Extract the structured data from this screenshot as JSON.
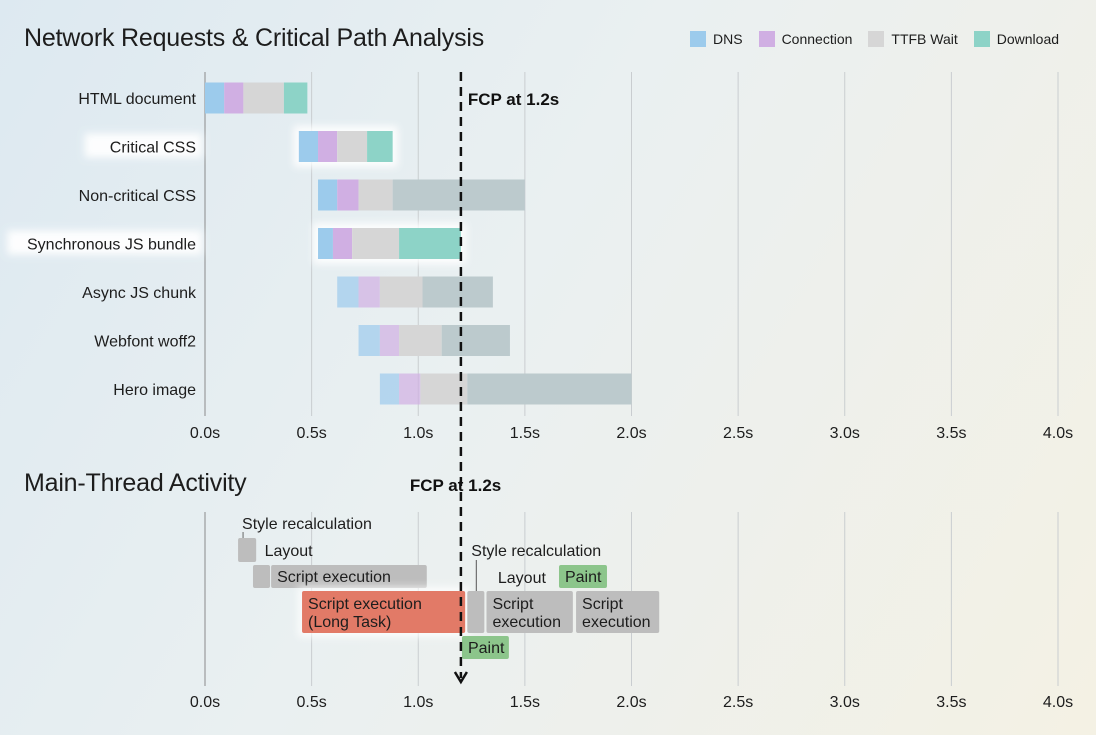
{
  "chart_data": [
    {
      "type": "bar",
      "subtype": "waterfall",
      "title": "Network Requests & Critical Path Analysis",
      "xlim": [
        0,
        4
      ],
      "x_ticks": [
        "0.0s",
        "0.5s",
        "1.0s",
        "1.5s",
        "2.0s",
        "2.5s",
        "3.0s",
        "3.5s",
        "4.0s"
      ],
      "grid": true,
      "legend_position": "top-right",
      "legend": [
        {
          "name": "DNS",
          "color": "#9ccbec"
        },
        {
          "name": "Connection",
          "color": "#d0afe3"
        },
        {
          "name": "TTFB Wait",
          "color": "#d6d6d6"
        },
        {
          "name": "Download",
          "color": "#8dd3c7"
        }
      ],
      "non_critical_download_color": "#bccacd",
      "annotation": {
        "label": "FCP at 1.2s",
        "x": 1.2
      },
      "rows": [
        {
          "label": "HTML document",
          "highlight": false,
          "critical": true,
          "dns": [
            0,
            0.09
          ],
          "connection": [
            0.09,
            0.18
          ],
          "ttfb": [
            0.18,
            0.37
          ],
          "download": [
            0.37,
            0.48
          ]
        },
        {
          "label": "Critical CSS",
          "highlight": true,
          "critical": true,
          "dns": [
            0.44,
            0.53
          ],
          "connection": [
            0.53,
            0.62
          ],
          "ttfb": [
            0.62,
            0.76
          ],
          "download": [
            0.76,
            0.88
          ]
        },
        {
          "label": "Non-critical CSS",
          "highlight": false,
          "critical": false,
          "dns": [
            0.53,
            0.62
          ],
          "connection": [
            0.62,
            0.72
          ],
          "ttfb": [
            0.72,
            0.88
          ],
          "download": [
            0.88,
            1.5
          ]
        },
        {
          "label": "Synchronous JS bundle",
          "highlight": true,
          "critical": true,
          "dns": [
            0.53,
            0.6
          ],
          "connection": [
            0.6,
            0.69
          ],
          "ttfb": [
            0.69,
            0.91
          ],
          "download": [
            0.91,
            1.2
          ]
        },
        {
          "label": "Async JS chunk",
          "highlight": false,
          "critical": false,
          "dns": [
            0.62,
            0.72
          ],
          "connection": [
            0.72,
            0.82
          ],
          "ttfb": [
            0.82,
            1.02
          ],
          "download": [
            1.02,
            1.35
          ]
        },
        {
          "label": "Webfont woff2",
          "highlight": false,
          "critical": false,
          "dns": [
            0.72,
            0.82
          ],
          "connection": [
            0.82,
            0.91
          ],
          "ttfb": [
            0.91,
            1.11
          ],
          "download": [
            1.11,
            1.43
          ]
        },
        {
          "label": "Hero image",
          "highlight": false,
          "critical": false,
          "dns": [
            0.82,
            0.91
          ],
          "connection": [
            0.91,
            1.01
          ],
          "ttfb": [
            1.01,
            1.23
          ],
          "download": [
            1.23,
            2.0
          ]
        }
      ]
    },
    {
      "type": "bar",
      "subtype": "timeline",
      "title": "Main-Thread Activity",
      "xlim": [
        0,
        4
      ],
      "x_ticks": [
        "0.0s",
        "0.5s",
        "1.0s",
        "1.5s",
        "2.0s",
        "2.5s",
        "3.0s",
        "3.5s",
        "4.0s"
      ],
      "grid": true,
      "annotation": {
        "label": "FCP at 1.2s",
        "x": 1.2
      },
      "colors": {
        "task": "#bdbdbd",
        "long_task": "#e27a67",
        "paint": "#8cc58b"
      },
      "tasks": [
        {
          "kind": "task",
          "start": 0.155,
          "end": 0.24,
          "lane": 0,
          "label": "Style recalculation",
          "label_pos": "above"
        },
        {
          "kind": "task",
          "start": 0.225,
          "end": 0.305,
          "lane": 1,
          "label": "Layout",
          "label_pos": "right-prev"
        },
        {
          "kind": "task",
          "start": 0.31,
          "end": 1.04,
          "lane": 1,
          "label": "Script execution",
          "label_pos": "inside"
        },
        {
          "kind": "long_task",
          "start": 0.455,
          "end": 1.22,
          "lane": 2,
          "label": "Script execution\n(Long Task)",
          "label_pos": "inside"
        },
        {
          "kind": "paint",
          "start": 1.205,
          "end": 1.425,
          "lane": 3,
          "label": "Paint",
          "label_pos": "inside"
        },
        {
          "kind": "task",
          "start": 1.23,
          "end": 1.31,
          "lane": 2,
          "label": "Style recalculation",
          "label_pos": "callout"
        },
        {
          "kind": "task",
          "start": 1.32,
          "end": 1.725,
          "lane": 2,
          "label": "Script\nexecution",
          "label_pos": "inside"
        },
        {
          "kind": "task",
          "start": 1.74,
          "end": 2.13,
          "lane": 2,
          "label": "Script\nexecution",
          "label_pos": "inside"
        },
        {
          "kind": "paint",
          "start": 1.66,
          "end": 1.885,
          "lane": 1,
          "label": "Paint",
          "label_pos": "inside"
        },
        {
          "kind": "label",
          "x": 1.35,
          "lane": 1,
          "label": "Layout"
        }
      ]
    }
  ]
}
